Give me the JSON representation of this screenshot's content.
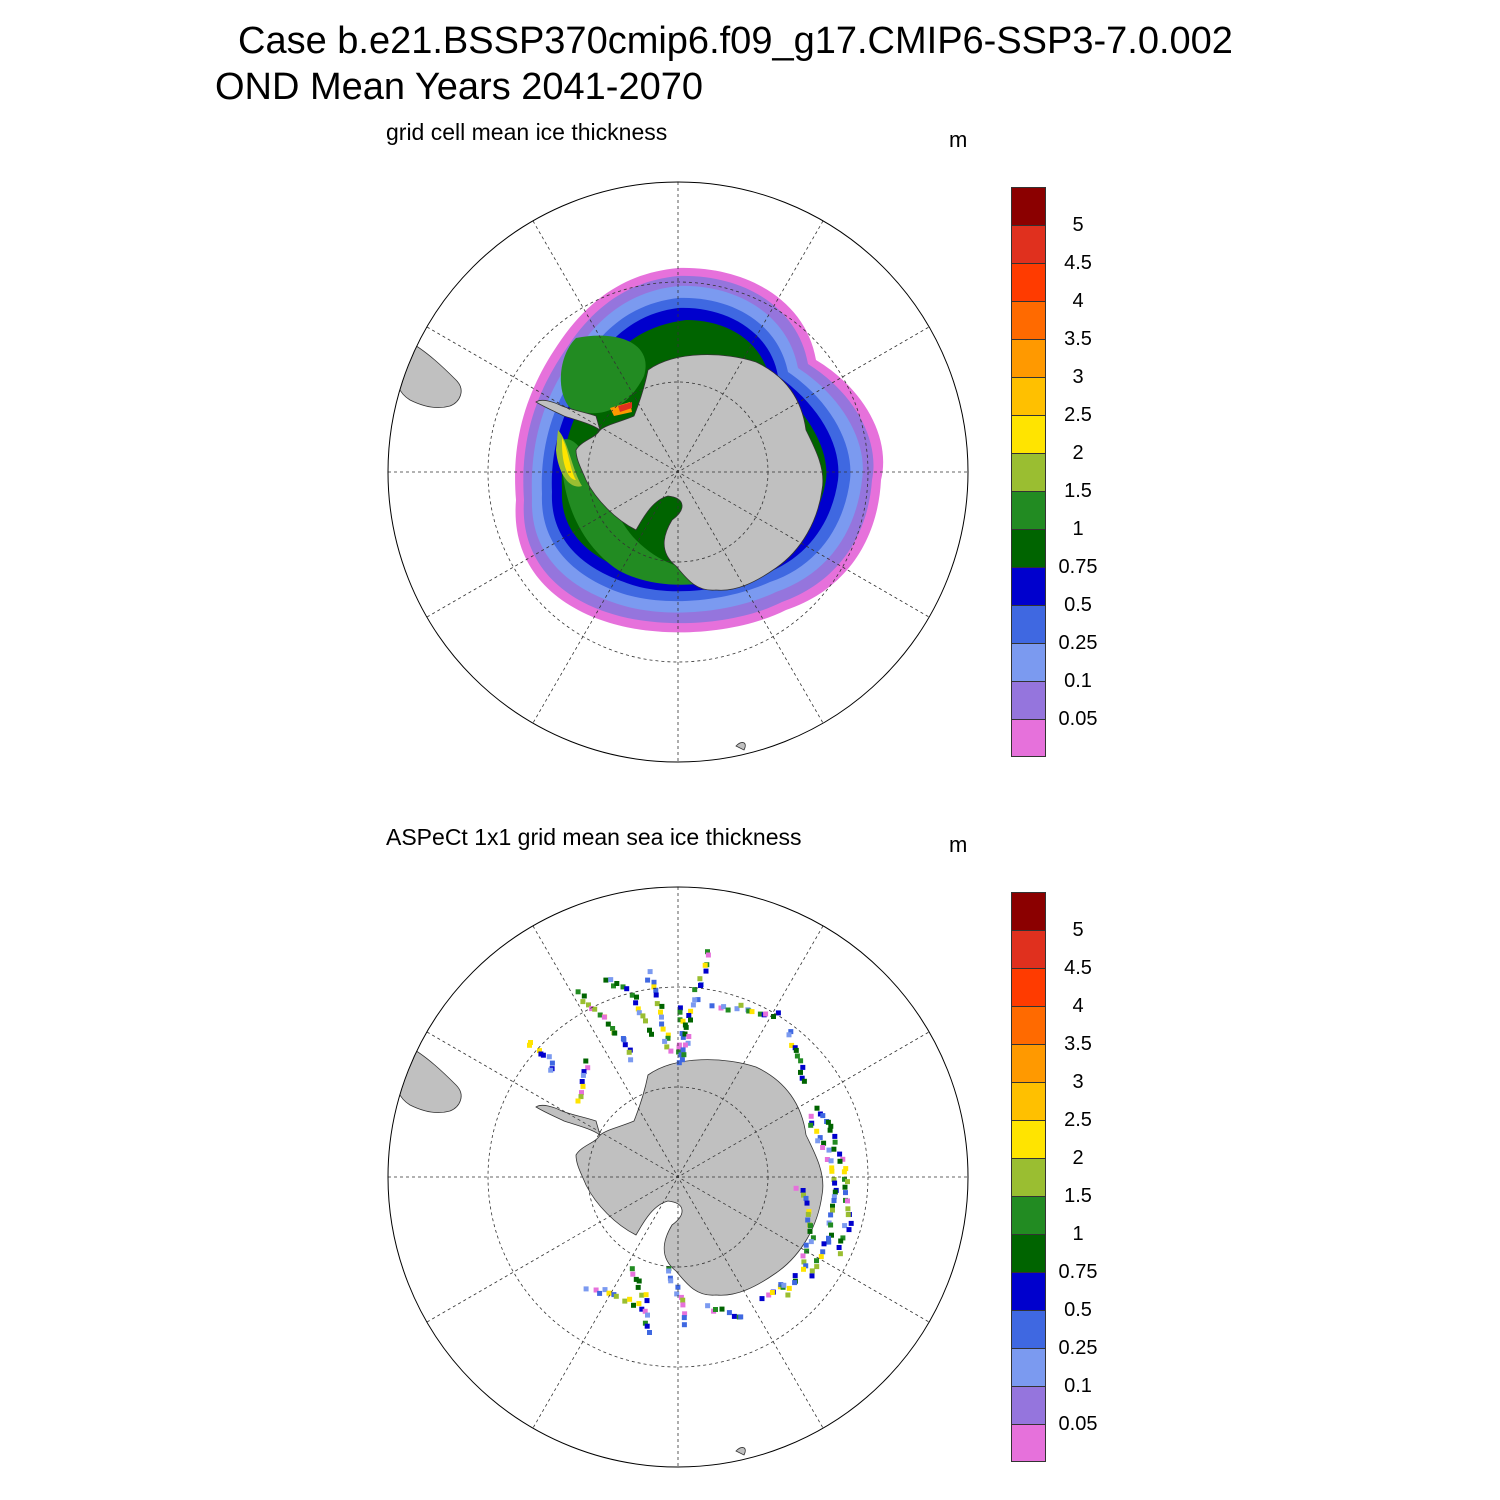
{
  "title": {
    "line1": "Case b.e21.BSSP370cmip6.f09_g17.CMIP6-SSP3-7.0.002",
    "line2": "OND Mean   Years 2041-2070"
  },
  "panels": [
    {
      "title": "grid cell mean ice thickness",
      "unit": "m"
    },
    {
      "title": "ASPeCt 1x1 grid mean sea ice thickness",
      "unit": "m"
    }
  ],
  "colorbar": {
    "labels": [
      "5",
      "4.5",
      "4",
      "3.5",
      "3",
      "2.5",
      "2",
      "1.5",
      "1",
      "0.75",
      "0.5",
      "0.25",
      "0.1",
      "0.05"
    ],
    "colors": [
      "#8b0000",
      "#e0301e",
      "#ff3b00",
      "#ff6a00",
      "#ff9900",
      "#ffc000",
      "#ffe400",
      "#9abe31",
      "#228b22",
      "#006400",
      "#0000cd",
      "#3f68e1",
      "#7b9af0",
      "#9575dd",
      "#e671db"
    ]
  },
  "colors": {
    "land": "#c0c0c0",
    "ocean": "#ffffff"
  }
}
